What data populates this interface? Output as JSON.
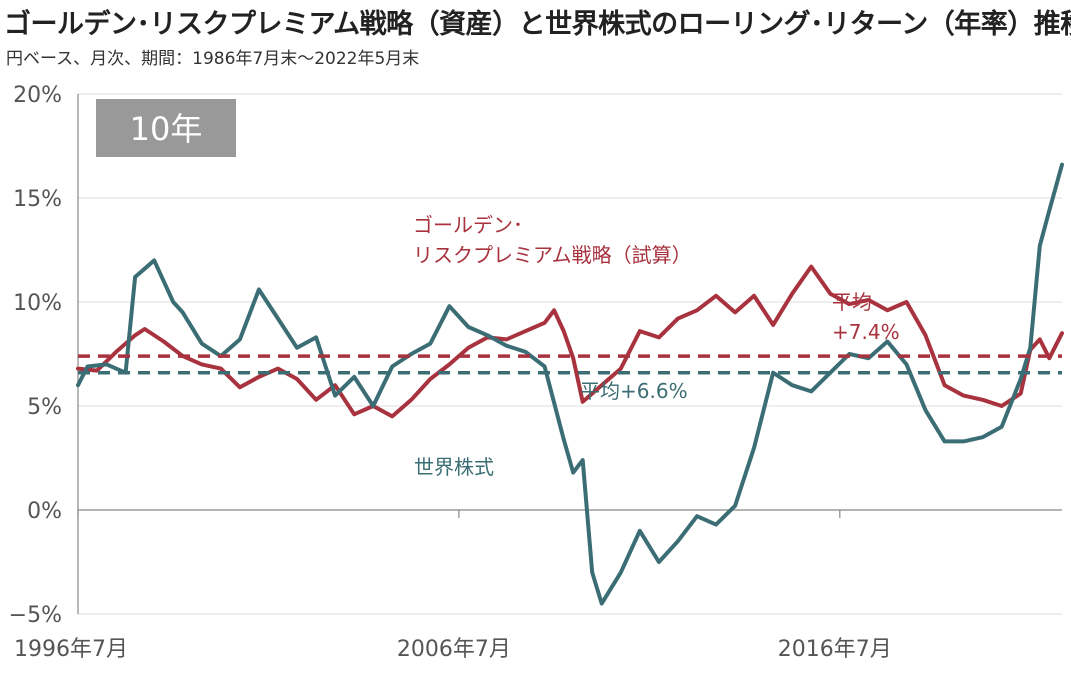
{
  "header": {
    "title": "ゴールデン･リスクプレミアム戦略（資産）と世界株式のローリング･リターン（年率）推移",
    "subtitle": "円ベース、月次、期間：1986年7月末〜2022年5月末"
  },
  "badge": {
    "label": "10年",
    "color": "#999999"
  },
  "colors": {
    "golden": "#a8323e",
    "world": "#3b6e74",
    "grid": "#dddddd"
  },
  "chart_data": {
    "type": "line",
    "title": "ゴールデン･リスクプレミアム戦略（資産）と世界株式のローリング･リターン（年率）推移",
    "subtitle": "円ベース、月次、期間：1986年7月末〜2022年5月末",
    "x_range": [
      "1996-07",
      "2022-05"
    ],
    "xticks": [
      {
        "label": "1996年7月",
        "x": "1996-07"
      },
      {
        "label": "2006年7月",
        "x": "2006-07"
      },
      {
        "label": "2016年7月",
        "x": "2016-07"
      }
    ],
    "ylim": [
      -5,
      20
    ],
    "yticks": [
      {
        "label": "20%",
        "value": 20
      },
      {
        "label": "15%",
        "value": 15
      },
      {
        "label": "10%",
        "value": 10
      },
      {
        "label": "5%",
        "value": 5
      },
      {
        "label": "0%",
        "value": 0
      },
      {
        "label": "−5%",
        "value": -5
      }
    ],
    "grid": true,
    "series": [
      {
        "name": "ゴールデン･リスクプレミアム戦略（試算）",
        "color": "#a8323e",
        "average_label": "平均 +7.4%",
        "average": 7.4,
        "points": [
          [
            "1996-07",
            6.8
          ],
          [
            "1997-01",
            6.7
          ],
          [
            "1997-07",
            7.6
          ],
          [
            "1998-01",
            8.4
          ],
          [
            "1998-04",
            8.7
          ],
          [
            "1998-10",
            8.1
          ],
          [
            "1999-04",
            7.4
          ],
          [
            "1999-10",
            7.0
          ],
          [
            "2000-04",
            6.8
          ],
          [
            "2000-10",
            5.9
          ],
          [
            "2001-04",
            6.4
          ],
          [
            "2001-10",
            6.8
          ],
          [
            "2002-04",
            6.3
          ],
          [
            "2002-10",
            5.3
          ],
          [
            "2003-04",
            6.0
          ],
          [
            "2003-10",
            4.6
          ],
          [
            "2004-04",
            5.0
          ],
          [
            "2004-10",
            4.5
          ],
          [
            "2005-04",
            5.3
          ],
          [
            "2005-10",
            6.3
          ],
          [
            "2006-04",
            7.0
          ],
          [
            "2006-10",
            7.8
          ],
          [
            "2007-04",
            8.3
          ],
          [
            "2007-10",
            8.2
          ],
          [
            "2008-04",
            8.6
          ],
          [
            "2008-10",
            9.0
          ],
          [
            "2009-01",
            9.6
          ],
          [
            "2009-04",
            8.6
          ],
          [
            "2009-07",
            7.3
          ],
          [
            "2009-10",
            5.2
          ],
          [
            "2010-04",
            6.0
          ],
          [
            "2010-10",
            6.8
          ],
          [
            "2011-04",
            8.6
          ],
          [
            "2011-10",
            8.3
          ],
          [
            "2012-04",
            9.2
          ],
          [
            "2012-10",
            9.6
          ],
          [
            "2013-04",
            10.3
          ],
          [
            "2013-10",
            9.5
          ],
          [
            "2014-04",
            10.3
          ],
          [
            "2014-10",
            8.9
          ],
          [
            "2015-04",
            10.4
          ],
          [
            "2015-10",
            11.7
          ],
          [
            "2016-04",
            10.4
          ],
          [
            "2016-10",
            9.9
          ],
          [
            "2017-04",
            10.1
          ],
          [
            "2017-10",
            9.6
          ],
          [
            "2018-04",
            10.0
          ],
          [
            "2018-10",
            8.4
          ],
          [
            "2019-04",
            6.0
          ],
          [
            "2019-10",
            5.5
          ],
          [
            "2020-04",
            5.3
          ],
          [
            "2020-10",
            5.0
          ],
          [
            "2021-04",
            5.6
          ],
          [
            "2021-07",
            7.7
          ],
          [
            "2021-10",
            8.2
          ],
          [
            "2022-01",
            7.3
          ],
          [
            "2022-05",
            8.5
          ]
        ]
      },
      {
        "name": "世界株式",
        "color": "#3b6e74",
        "average_label": "平均 +6.6%",
        "average": 6.6,
        "points": [
          [
            "1996-07",
            6.0
          ],
          [
            "1996-10",
            6.9
          ],
          [
            "1997-04",
            7.0
          ],
          [
            "1997-10",
            6.6
          ],
          [
            "1998-01",
            11.2
          ],
          [
            "1998-04",
            11.6
          ],
          [
            "1998-07",
            12.0
          ],
          [
            "1998-10",
            11.0
          ],
          [
            "1999-01",
            10.0
          ],
          [
            "1999-04",
            9.5
          ],
          [
            "1999-10",
            8.0
          ],
          [
            "2000-04",
            7.4
          ],
          [
            "2000-10",
            8.2
          ],
          [
            "2001-04",
            10.6
          ],
          [
            "2001-10",
            9.2
          ],
          [
            "2002-04",
            7.8
          ],
          [
            "2002-10",
            8.3
          ],
          [
            "2003-04",
            5.5
          ],
          [
            "2003-10",
            6.4
          ],
          [
            "2004-04",
            5.0
          ],
          [
            "2004-10",
            6.9
          ],
          [
            "2005-04",
            7.5
          ],
          [
            "2005-10",
            8.0
          ],
          [
            "2006-04",
            9.8
          ],
          [
            "2006-10",
            8.8
          ],
          [
            "2007-04",
            8.4
          ],
          [
            "2007-10",
            7.9
          ],
          [
            "2008-04",
            7.6
          ],
          [
            "2008-10",
            6.9
          ],
          [
            "2009-04",
            3.4
          ],
          [
            "2009-07",
            1.8
          ],
          [
            "2009-10",
            2.4
          ],
          [
            "2010-01",
            -3.0
          ],
          [
            "2010-04",
            -4.5
          ],
          [
            "2010-10",
            -3.0
          ],
          [
            "2011-04",
            -1.0
          ],
          [
            "2011-10",
            -2.5
          ],
          [
            "2012-04",
            -1.5
          ],
          [
            "2012-10",
            -0.3
          ],
          [
            "2013-04",
            -0.7
          ],
          [
            "2013-10",
            0.2
          ],
          [
            "2014-04",
            3.0
          ],
          [
            "2014-10",
            6.6
          ],
          [
            "2015-04",
            6.0
          ],
          [
            "2015-10",
            5.7
          ],
          [
            "2016-04",
            6.6
          ],
          [
            "2016-10",
            7.5
          ],
          [
            "2017-04",
            7.3
          ],
          [
            "2017-10",
            8.1
          ],
          [
            "2018-04",
            7.0
          ],
          [
            "2018-10",
            4.8
          ],
          [
            "2019-04",
            3.3
          ],
          [
            "2019-10",
            3.3
          ],
          [
            "2020-04",
            3.5
          ],
          [
            "2020-10",
            4.0
          ],
          [
            "2021-04",
            6.3
          ],
          [
            "2021-07",
            7.8
          ],
          [
            "2021-10",
            12.7
          ],
          [
            "2022-01",
            14.4
          ],
          [
            "2022-05",
            16.6
          ]
        ]
      }
    ],
    "annotations": [
      {
        "text": "ゴールデン･",
        "series": 0
      },
      {
        "text": "リスクプレミアム戦略（試算）",
        "series": 0
      },
      {
        "text": "平均",
        "series": 0
      },
      {
        "text": "+7.4%",
        "series": 0
      },
      {
        "text": "平均+6.6%",
        "series": 1
      },
      {
        "text": "世界株式",
        "series": 1
      }
    ]
  }
}
